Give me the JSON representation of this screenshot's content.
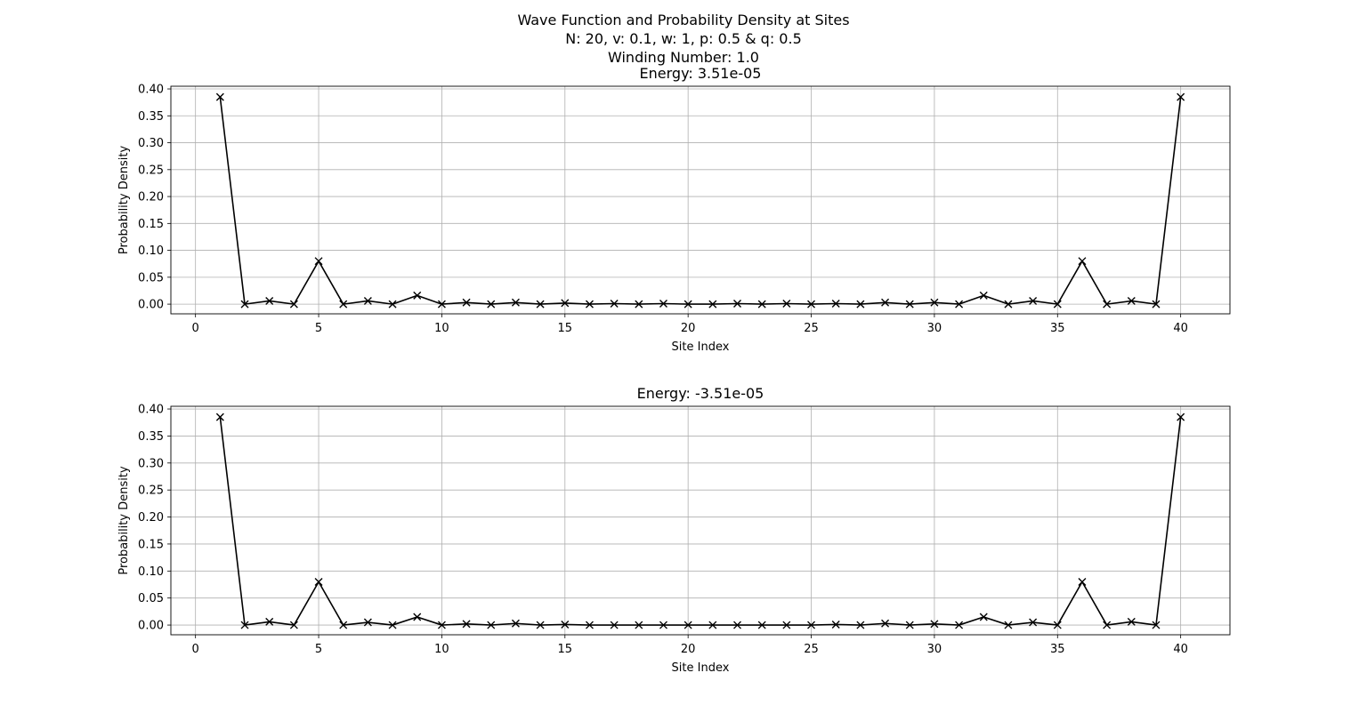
{
  "figure": {
    "suptitle_lines": [
      "Wave Function and Probability Density at Sites",
      "N: 20, v: 0.1, w: 1, p: 0.5 & q: 0.5",
      "Winding Number: 1.0"
    ]
  },
  "chart_data": [
    {
      "type": "line",
      "title": "Energy: 3.51e-05",
      "xlabel": "Site Index",
      "ylabel": "Probability Density",
      "xlim": [
        -1,
        42
      ],
      "ylim": [
        -0.018,
        0.405
      ],
      "xticks": [
        0,
        5,
        10,
        15,
        20,
        25,
        30,
        35,
        40
      ],
      "yticks": [
        "0.00",
        "0.05",
        "0.10",
        "0.15",
        "0.20",
        "0.25",
        "0.30",
        "0.35",
        "0.40"
      ],
      "grid": true,
      "marker": "x",
      "color": "#000000",
      "x": [
        1,
        2,
        3,
        4,
        5,
        6,
        7,
        8,
        9,
        10,
        11,
        12,
        13,
        14,
        15,
        16,
        17,
        18,
        19,
        20,
        21,
        22,
        23,
        24,
        25,
        26,
        27,
        28,
        29,
        30,
        31,
        32,
        33,
        34,
        35,
        36,
        37,
        38,
        39,
        40
      ],
      "values": [
        0.385,
        0.0,
        0.006,
        0.0,
        0.08,
        0.0,
        0.006,
        0.0,
        0.016,
        0.0,
        0.003,
        0.0,
        0.003,
        0.0,
        0.002,
        0.0,
        0.001,
        0.0,
        0.001,
        0.0,
        0.0,
        0.001,
        0.0,
        0.001,
        0.0,
        0.001,
        0.0,
        0.003,
        0.0,
        0.003,
        0.0,
        0.016,
        0.0,
        0.006,
        0.0,
        0.08,
        0.0,
        0.006,
        0.0,
        0.385
      ]
    },
    {
      "type": "line",
      "title": "Energy: -3.51e-05",
      "xlabel": "Site Index",
      "ylabel": "Probability Density",
      "xlim": [
        -1,
        42
      ],
      "ylim": [
        -0.018,
        0.405
      ],
      "xticks": [
        0,
        5,
        10,
        15,
        20,
        25,
        30,
        35,
        40
      ],
      "yticks": [
        "0.00",
        "0.05",
        "0.10",
        "0.15",
        "0.20",
        "0.25",
        "0.30",
        "0.35",
        "0.40"
      ],
      "grid": true,
      "marker": "x",
      "color": "#000000",
      "x": [
        1,
        2,
        3,
        4,
        5,
        6,
        7,
        8,
        9,
        10,
        11,
        12,
        13,
        14,
        15,
        16,
        17,
        18,
        19,
        20,
        21,
        22,
        23,
        24,
        25,
        26,
        27,
        28,
        29,
        30,
        31,
        32,
        33,
        34,
        35,
        36,
        37,
        38,
        39,
        40
      ],
      "values": [
        0.385,
        0.0,
        0.006,
        0.0,
        0.08,
        0.0,
        0.005,
        0.0,
        0.015,
        0.0,
        0.002,
        0.0,
        0.003,
        0.0,
        0.001,
        0.0,
        0.0,
        0.0,
        0.0,
        0.0,
        0.0,
        0.0,
        0.0,
        0.0,
        0.0,
        0.001,
        0.0,
        0.003,
        0.0,
        0.002,
        0.0,
        0.015,
        0.0,
        0.005,
        0.0,
        0.08,
        0.0,
        0.006,
        0.0,
        0.385
      ]
    }
  ]
}
